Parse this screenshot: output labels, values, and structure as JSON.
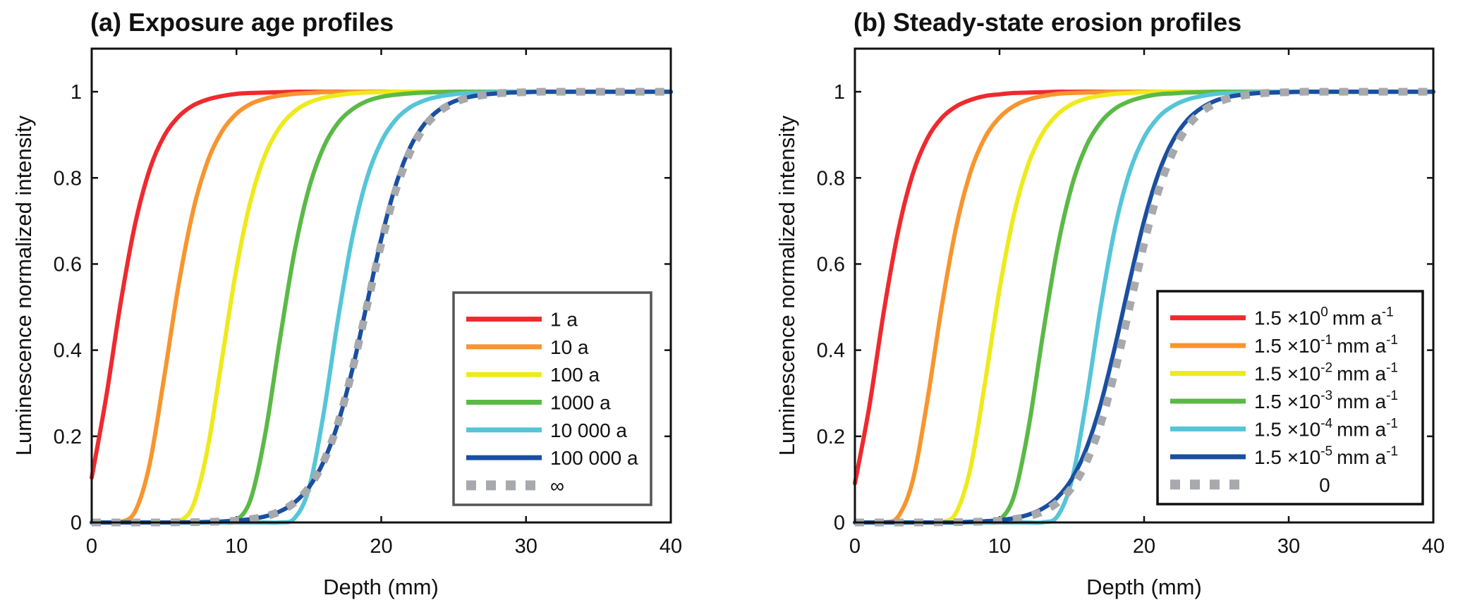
{
  "chart_data": [
    {
      "type": "line",
      "title": "(a) Exposure age profiles",
      "xlabel": "Depth (mm)",
      "ylabel": "Luminescence normalized intensity",
      "xlim": [
        0,
        40
      ],
      "ylim": [
        0,
        1.1
      ],
      "xticks": [
        0,
        10,
        20,
        30,
        40
      ],
      "xtick_labels": [
        "0",
        "10",
        "20",
        "30",
        "40"
      ],
      "yticks": [
        0,
        0.2,
        0.4,
        0.6,
        0.8,
        1
      ],
      "ytick_labels": [
        "0",
        "0.2",
        "0.4",
        "0.6",
        "0.8",
        "1"
      ],
      "grid": false,
      "legend_position": "lower-right",
      "x": [
        0,
        1,
        2,
        3,
        4,
        5,
        6,
        7,
        8,
        9,
        10,
        11,
        12,
        13,
        14,
        15,
        16,
        17,
        18,
        19,
        20,
        21,
        22,
        23,
        24,
        25,
        26,
        27,
        28,
        29,
        30,
        31,
        32,
        33,
        34,
        35,
        36,
        37,
        38,
        39,
        40
      ],
      "series": [
        {
          "name": "1 a",
          "label": {
            "main": "1 a"
          },
          "color": "#ee2a2e",
          "style": "solid",
          "values": [
            0.104,
            0.291,
            0.51,
            0.693,
            0.819,
            0.897,
            0.942,
            0.968,
            0.982,
            0.99,
            0.995,
            0.997,
            0.998,
            0.999,
            1,
            1,
            1,
            1,
            1,
            1,
            1,
            1,
            1,
            1,
            1,
            1,
            1,
            1,
            1,
            1,
            1,
            1,
            1,
            1,
            1,
            1,
            1,
            1,
            1,
            1,
            1
          ]
        },
        {
          "name": "10 a",
          "label": {
            "main": "10 a"
          },
          "color": "#f7952e",
          "style": "solid",
          "values": [
            0,
            0,
            0.0012,
            0.0255,
            0.135,
            0.336,
            0.551,
            0.723,
            0.838,
            0.908,
            0.949,
            0.972,
            0.984,
            0.991,
            0.995,
            0.997,
            0.999,
            0.999,
            1,
            1,
            1,
            1,
            1,
            1,
            1,
            1,
            1,
            1,
            1,
            1,
            1,
            1,
            1,
            1,
            1,
            1,
            1,
            1,
            1,
            1,
            1
          ]
        },
        {
          "name": "100 a",
          "label": {
            "main": "100 a"
          },
          "color": "#eeea1c",
          "style": "solid",
          "values": [
            0,
            0,
            0,
            0,
            0,
            2e-05,
            0.0026,
            0.0389,
            0.17,
            0.38,
            0.59,
            0.75,
            0.855,
            0.918,
            0.954,
            0.975,
            0.986,
            0.992,
            0.996,
            0.998,
            0.999,
            1,
            1,
            1,
            1,
            1,
            1,
            1,
            1,
            1,
            1,
            1,
            1,
            1,
            1,
            1,
            1,
            1,
            1,
            1,
            1
          ]
        },
        {
          "name": "1000 a",
          "label": {
            "main": "1000 a"
          },
          "color": "#5bb946",
          "style": "solid",
          "values": [
            0,
            0,
            0,
            0,
            0,
            0,
            0,
            0,
            0,
            0.0001,
            0.0051,
            0.056,
            0.208,
            0.425,
            0.627,
            0.775,
            0.87,
            0.927,
            0.959,
            0.978,
            0.988,
            0.993,
            0.996,
            0.998,
            0.999,
            1,
            1,
            1,
            1,
            1,
            1,
            1,
            1,
            1,
            1,
            1,
            1,
            1,
            1,
            1,
            1
          ]
        },
        {
          "name": "10 000 a",
          "label": {
            "main": "10 000 a"
          },
          "color": "#56c5d8",
          "style": "solid",
          "values": [
            0,
            0,
            0,
            0,
            0,
            0,
            0,
            0,
            0,
            0,
            0,
            0,
            0,
            0.0002,
            0.0094,
            0.078,
            0.249,
            0.469,
            0.661,
            0.798,
            0.884,
            0.935,
            0.964,
            0.98,
            0.989,
            0.994,
            0.997,
            0.998,
            0.999,
            1,
            1,
            1,
            1,
            1,
            1,
            1,
            1,
            1,
            1,
            1,
            1
          ]
        },
        {
          "name": "100 000 a",
          "label": {
            "main": "100 000 a"
          },
          "color": "#1a4fa0",
          "style": "solid",
          "values": [
            0,
            0,
            0,
            0,
            0,
            0,
            0.0004,
            0.0007,
            0.0013,
            0.0023,
            0.0043,
            0.0078,
            0.0142,
            0.0257,
            0.046,
            0.0815,
            0.14,
            0.229,
            0.354,
            0.506,
            0.658,
            0.783,
            0.871,
            0.926,
            0.958,
            0.977,
            0.987,
            0.993,
            0.996,
            0.998,
            0.999,
            1,
            1,
            1,
            1,
            1,
            1,
            1,
            1,
            1,
            1
          ]
        },
        {
          "name": "∞",
          "label": {
            "main": "∞"
          },
          "color": "#a7a9ac",
          "style": "dotted",
          "values": [
            0,
            0,
            0,
            0,
            0,
            0,
            0.0004,
            0.0007,
            0.0013,
            0.0023,
            0.0043,
            0.0078,
            0.0142,
            0.0257,
            0.046,
            0.081,
            0.14,
            0.229,
            0.353,
            0.5,
            0.647,
            0.771,
            0.86,
            0.919,
            0.954,
            0.974,
            0.986,
            0.992,
            0.996,
            0.998,
            0.999,
            1,
            1,
            1,
            1,
            1,
            1,
            1,
            1,
            1,
            1
          ]
        }
      ]
    },
    {
      "type": "line",
      "title": "(b) Steady-state erosion profiles",
      "xlabel": "Depth (mm)",
      "ylabel": "Luminescence normalized intensity",
      "xlim": [
        0,
        40
      ],
      "ylim": [
        0,
        1.1
      ],
      "xticks": [
        0,
        10,
        20,
        30,
        40
      ],
      "xtick_labels": [
        "0",
        "10",
        "20",
        "30",
        "40"
      ],
      "yticks": [
        0,
        0.2,
        0.4,
        0.6,
        0.8,
        1
      ],
      "ytick_labels": [
        "0",
        "0.2",
        "0.4",
        "0.6",
        "0.8",
        "1"
      ],
      "grid": false,
      "legend_position": "lower-right",
      "x": [
        0,
        1,
        2,
        3,
        4,
        5,
        6,
        7,
        8,
        9,
        10,
        11,
        12,
        13,
        14,
        15,
        16,
        17,
        18,
        19,
        20,
        21,
        22,
        23,
        24,
        25,
        26,
        27,
        28,
        29,
        30,
        31,
        32,
        33,
        34,
        35,
        36,
        37,
        38,
        39,
        40
      ],
      "series": [
        {
          "name": "1.5 ×10^0 mm a^-1",
          "label": {
            "main": "1.5 ×10",
            "exp": "0",
            "unit": "mm a",
            "unit_exp": "-1"
          },
          "color": "#ee2a2e",
          "style": "solid",
          "values": [
            0.091,
            0.27,
            0.49,
            0.677,
            0.809,
            0.891,
            0.939,
            0.966,
            0.981,
            0.99,
            0.994,
            0.997,
            0.998,
            0.999,
            1,
            1,
            1,
            1,
            1,
            1,
            1,
            1,
            1,
            1,
            1,
            1,
            1,
            1,
            1,
            1,
            1,
            1,
            1,
            1,
            1,
            1,
            1,
            1,
            1,
            1,
            1
          ]
        },
        {
          "name": "1.5 ×10^-1 mm a^-1",
          "label": {
            "main": "1.5 ×10",
            "exp": "-1",
            "unit": "mm a",
            "unit_exp": "-1"
          },
          "color": "#f7952e",
          "style": "solid",
          "values": [
            0,
            0,
            0.0004,
            0.014,
            0.097,
            0.281,
            0.5,
            0.685,
            0.814,
            0.894,
            0.94,
            0.967,
            0.982,
            0.99,
            0.995,
            0.997,
            0.998,
            0.999,
            1,
            1,
            1,
            1,
            1,
            1,
            1,
            1,
            1,
            1,
            1,
            1,
            1,
            1,
            1,
            1,
            1,
            1,
            1,
            1,
            1,
            1,
            1
          ]
        },
        {
          "name": "1.5 ×10^-2 mm a^-1",
          "label": {
            "main": "1.5 ×10",
            "exp": "-2",
            "unit": "mm a",
            "unit_exp": "-1"
          },
          "color": "#eeea1c",
          "style": "solid",
          "values": [
            0,
            0,
            0,
            0,
            0,
            0,
            0.001,
            0.0228,
            0.127,
            0.325,
            0.541,
            0.715,
            0.833,
            0.905,
            0.947,
            0.971,
            0.984,
            0.991,
            0.995,
            0.997,
            0.999,
            1,
            1,
            1,
            1,
            1,
            1,
            1,
            1,
            1,
            1,
            1,
            1,
            1,
            1,
            1,
            1,
            1,
            1,
            1,
            1
          ]
        },
        {
          "name": "1.5 ×10^-3 mm a^-1",
          "label": {
            "main": "1.5 ×10",
            "exp": "-3",
            "unit": "mm a",
            "unit_exp": "-1"
          },
          "color": "#5bb946",
          "style": "solid",
          "values": [
            0,
            0,
            0,
            0,
            0,
            0,
            0,
            0,
            0,
            0.0001,
            0.006,
            0.061,
            0.218,
            0.436,
            0.636,
            0.781,
            0.874,
            0.929,
            0.961,
            0.978,
            0.988,
            0.994,
            0.996,
            0.998,
            0.999,
            1,
            1,
            1,
            1,
            1,
            1,
            1,
            1,
            1,
            1,
            1,
            1,
            1,
            1,
            1,
            1
          ]
        },
        {
          "name": "1.5 ×10^-4 mm a^-1",
          "label": {
            "main": "1.5 ×10",
            "exp": "-4",
            "unit": "mm a",
            "unit_exp": "-1"
          },
          "color": "#56c5d8",
          "style": "solid",
          "values": [
            0,
            0,
            0,
            0,
            0,
            0,
            0,
            0,
            0,
            0,
            0,
            0,
            0,
            0.0004,
            0.0142,
            0.098,
            0.282,
            0.501,
            0.686,
            0.814,
            0.894,
            0.941,
            0.967,
            0.982,
            0.99,
            0.995,
            0.997,
            0.998,
            0.999,
            1,
            1,
            1,
            1,
            1,
            1,
            1,
            1,
            1,
            1,
            1,
            1
          ]
        },
        {
          "name": "1.5 ×10^-5 mm a^-1",
          "label": {
            "main": "1.5 ×10",
            "exp": "-5",
            "unit": "mm a",
            "unit_exp": "-1"
          },
          "color": "#1a4fa0",
          "style": "solid",
          "values": [
            0,
            0,
            0,
            0,
            0,
            0,
            0,
            0,
            0.0016,
            0.003,
            0.0054,
            0.0099,
            0.018,
            0.0325,
            0.058,
            0.101,
            0.171,
            0.275,
            0.41,
            0.56,
            0.7,
            0.811,
            0.887,
            0.935,
            0.963,
            0.98,
            0.989,
            0.994,
            0.997,
            0.998,
            0.999,
            1,
            1,
            1,
            1,
            1,
            1,
            1,
            1,
            1,
            1
          ]
        },
        {
          "name": "0",
          "label": {
            "main": "0",
            "centered": true
          },
          "color": "#a7a9ac",
          "style": "dotted",
          "values": [
            0,
            0,
            0,
            0,
            0,
            0,
            0.0004,
            0.0007,
            0.0013,
            0.0023,
            0.0043,
            0.0078,
            0.0142,
            0.0257,
            0.046,
            0.081,
            0.14,
            0.229,
            0.353,
            0.5,
            0.647,
            0.771,
            0.86,
            0.919,
            0.954,
            0.974,
            0.986,
            0.992,
            0.996,
            0.998,
            0.999,
            1,
            1,
            1,
            1,
            1,
            1,
            1,
            1,
            1,
            1
          ]
        }
      ]
    }
  ]
}
